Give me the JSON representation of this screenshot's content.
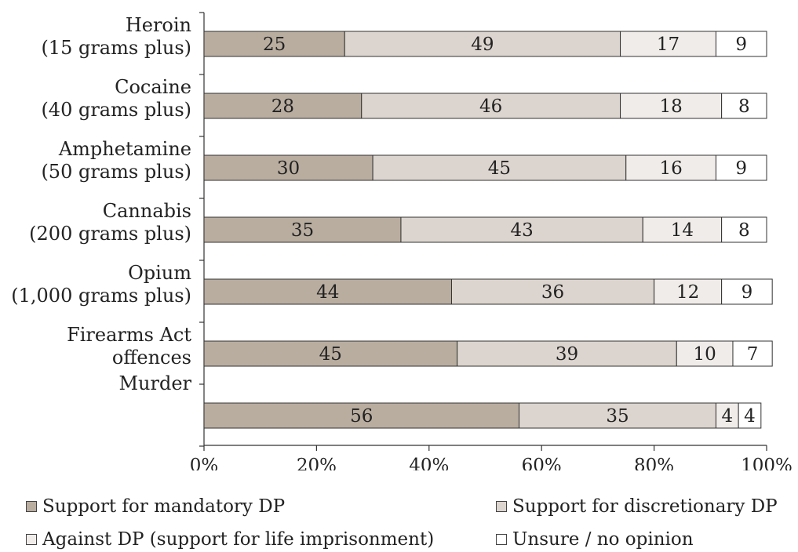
{
  "chart_data": {
    "type": "bar",
    "orientation": "horizontal",
    "stacked": true,
    "categories": [
      [
        "Heroin",
        "(15 grams plus)"
      ],
      [
        "Cocaine",
        "(40 grams plus)"
      ],
      [
        "Amphetamine",
        "(50 grams plus)"
      ],
      [
        "Cannabis",
        "(200 grams plus)"
      ],
      [
        "Opium",
        "(1,000 grams plus)"
      ],
      [
        "Firearms Act",
        "offences"
      ],
      [
        "Murder"
      ]
    ],
    "series": [
      {
        "name": "Support for mandatory DP",
        "color": "#b9ada0",
        "values": [
          25,
          28,
          30,
          35,
          44,
          45,
          56
        ]
      },
      {
        "name": "Support for discretionary DP",
        "color": "#dcd4ce",
        "values": [
          49,
          46,
          45,
          43,
          36,
          39,
          35
        ]
      },
      {
        "name": "Against DP (support for life imprisonment)",
        "color": "#f0ece9",
        "values": [
          17,
          18,
          16,
          14,
          12,
          10,
          4
        ]
      },
      {
        "name": "Unsure / no opinion",
        "color": "#ffffff",
        "values": [
          9,
          8,
          9,
          8,
          9,
          7,
          4
        ]
      }
    ],
    "xlim": [
      0,
      100
    ],
    "xticks": [
      "0%",
      "20%",
      "40%",
      "60%",
      "80%",
      "100%"
    ],
    "legend_position": "bottom",
    "grid": false
  }
}
